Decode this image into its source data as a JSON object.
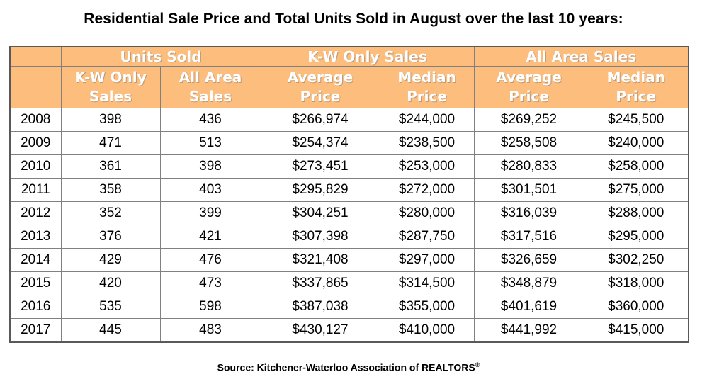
{
  "page": {
    "source_text": "Source: Kitchener-Waterloo Association of REALTORS",
    "source_mark": "®"
  },
  "colors": {
    "header_bg": "#FCBD7D",
    "header_text": "#FFFFFF",
    "grid_border": "#808080",
    "outer_border": "#595959",
    "body_text": "#000000",
    "page_bg": "#FFFFFF"
  },
  "chart_data": {
    "type": "table",
    "title": "Residential Sale Price and Total Units Sold in August over the last 10 years:",
    "group_headers": [
      {
        "label": "Units Sold",
        "colspan": 2
      },
      {
        "label": "K-W Only Sales",
        "colspan": 2
      },
      {
        "label": "All Area Sales",
        "colspan": 2
      }
    ],
    "sub_headers": [
      "K-W Only\nSales",
      "All Area\nSales",
      "Average\nPrice",
      "Median\nPrice",
      "Average\nPrice",
      "Median\nPrice"
    ],
    "years": [
      "2008",
      "2009",
      "2010",
      "2011",
      "2012",
      "2013",
      "2014",
      "2015",
      "2016",
      "2017"
    ],
    "rows": [
      [
        "398",
        "436",
        "$266,974",
        "$244,000",
        "$269,252",
        "$245,500"
      ],
      [
        "471",
        "513",
        "$254,374",
        "$238,500",
        "$258,508",
        "$240,000"
      ],
      [
        "361",
        "398",
        "$273,451",
        "$253,000",
        "$280,833",
        "$258,000"
      ],
      [
        "358",
        "403",
        "$295,829",
        "$272,000",
        "$301,501",
        "$275,000"
      ],
      [
        "352",
        "399",
        "$304,251",
        "$280,000",
        "$316,039",
        "$288,000"
      ],
      [
        "376",
        "421",
        "$307,398",
        "$287,750",
        "$317,516",
        "$295,000"
      ],
      [
        "429",
        "476",
        "$321,408",
        "$297,000",
        "$326,659",
        "$302,250"
      ],
      [
        "420",
        "473",
        "$337,865",
        "$314,500",
        "$348,879",
        "$318,000"
      ],
      [
        "535",
        "598",
        "$387,038",
        "$355,000",
        "$401,619",
        "$360,000"
      ],
      [
        "445",
        "483",
        "$430,127",
        "$410,000",
        "$441,992",
        "$415,000"
      ]
    ]
  }
}
